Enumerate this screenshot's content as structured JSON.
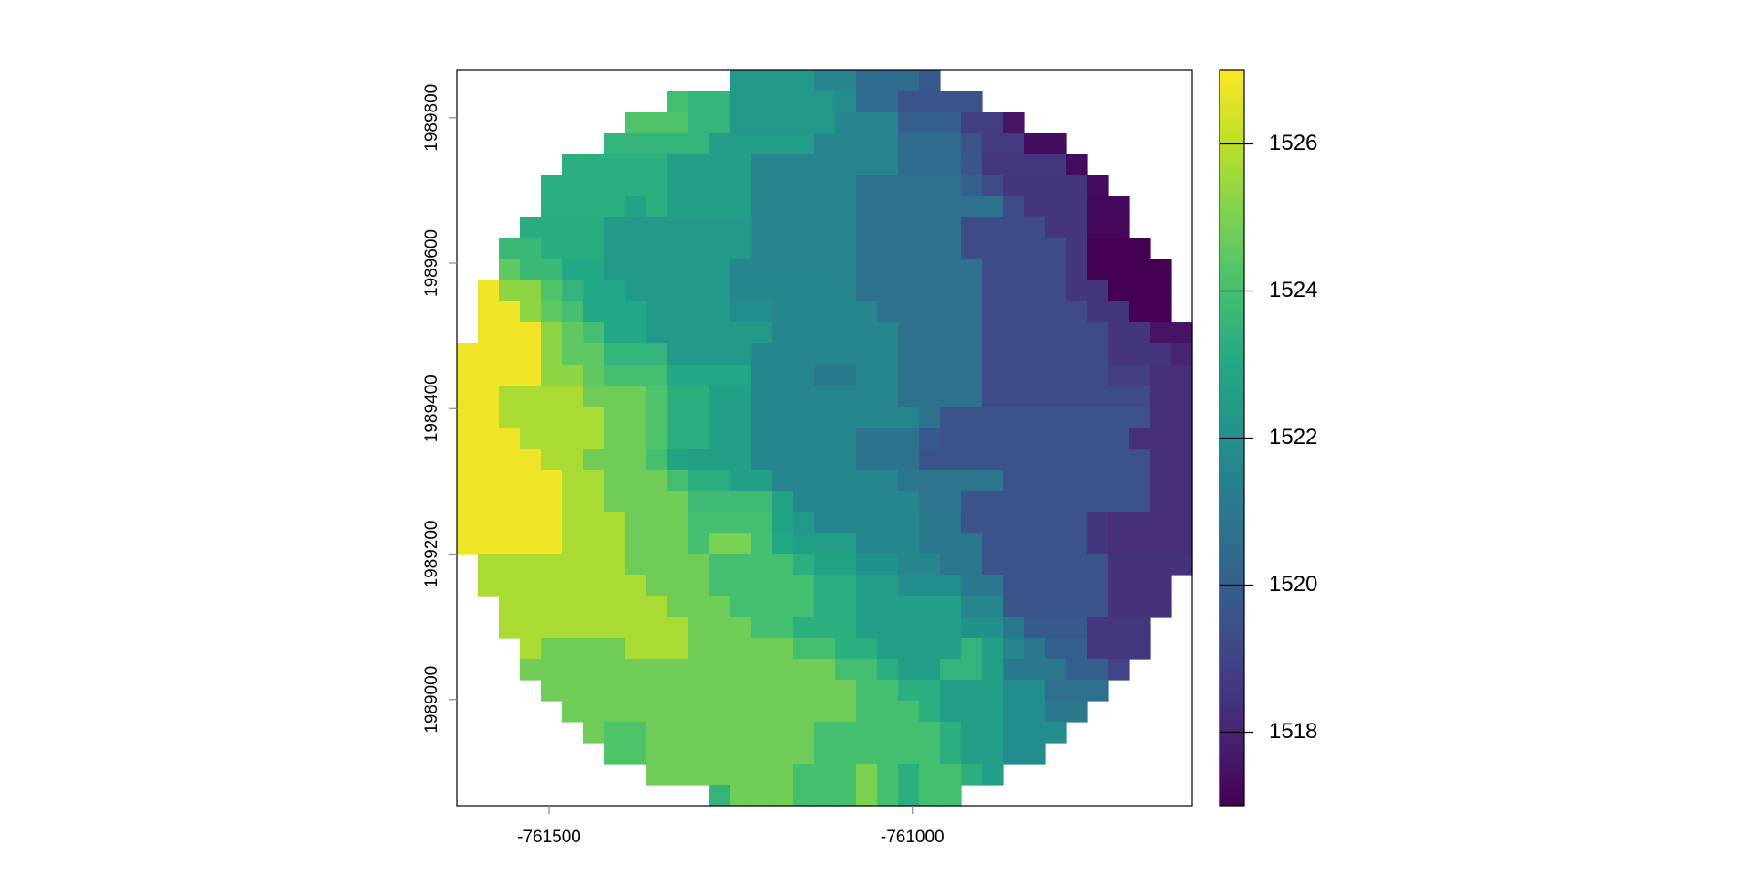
{
  "chart_data": {
    "type": "heatmap",
    "colormap": "viridis",
    "xlim": [
      -761627,
      -760615
    ],
    "ylim": [
      1988854,
      1989865
    ],
    "xticks": [
      -761500,
      -761000
    ],
    "yticks": [
      1989000,
      1989200,
      1989400,
      1989600,
      1989800
    ],
    "zlim": [
      1517,
      1527
    ],
    "zticks": [
      1518,
      1520,
      1522,
      1524,
      1526
    ],
    "z": [
      [
        null,
        null,
        null,
        null,
        null,
        null,
        null,
        null,
        null,
        null,
        null,
        null,
        null,
        1522.3,
        1522.3,
        1522.3,
        1522.3,
        1521.5,
        1521.5,
        1520.5,
        1520.5,
        1520.5,
        1519.8,
        null,
        null,
        null,
        null,
        null,
        null,
        null,
        null,
        null,
        null,
        null,
        null
      ],
      [
        null,
        null,
        null,
        null,
        null,
        null,
        null,
        null,
        null,
        null,
        1524,
        1523.5,
        1523.5,
        1522.3,
        1522.3,
        1522.3,
        1522.3,
        1522.3,
        1521.8,
        1520.5,
        1520.5,
        1519.5,
        1519.5,
        1519.5,
        1519.5,
        null,
        null,
        null,
        null,
        null,
        null,
        null,
        null,
        null,
        null
      ],
      [
        null,
        null,
        null,
        null,
        null,
        null,
        null,
        null,
        1524.2,
        1524.2,
        1524.2,
        1523.5,
        1523.5,
        1522.3,
        1522.3,
        1522.3,
        1522.3,
        1522.3,
        1521.5,
        1521.5,
        1521.5,
        1520,
        1520,
        1520,
        1518.8,
        1518.8,
        1517.5,
        null,
        null,
        null,
        null,
        null,
        null,
        null,
        null
      ],
      [
        null,
        null,
        null,
        null,
        null,
        null,
        null,
        1523.5,
        1523.5,
        1523.5,
        1523.5,
        1523.5,
        1522.5,
        1522.5,
        1522.5,
        1522.5,
        1522.5,
        1521.5,
        1521.5,
        1521.5,
        1521.5,
        1520.5,
        1520.5,
        1520.5,
        1519.5,
        1518.7,
        1518.7,
        1517.3,
        1517.3,
        null,
        null,
        null,
        null,
        null,
        null
      ],
      [
        null,
        null,
        null,
        null,
        null,
        1523.3,
        1523.3,
        1523.3,
        1523.3,
        1523.3,
        1522.6,
        1522.6,
        1522.6,
        1522.6,
        1521.5,
        1521.5,
        1521.5,
        1521.5,
        1521.5,
        1521.5,
        1521.5,
        1520.5,
        1520.5,
        1520.5,
        1519.7,
        1518.6,
        1518.6,
        1518.6,
        1518.6,
        1517.3,
        null,
        null,
        null,
        null,
        null
      ],
      [
        null,
        null,
        null,
        null,
        1523.3,
        1523.3,
        1523.3,
        1523.3,
        1523.3,
        1523.3,
        1522.6,
        1522.6,
        1522.6,
        1522.6,
        1521.5,
        1521.5,
        1521.5,
        1521.5,
        1521.5,
        1520.7,
        1520.7,
        1520.7,
        1520.7,
        1520.7,
        1520,
        1519.3,
        1518.5,
        1518.5,
        1518.5,
        1518.5,
        1517.3,
        null,
        null,
        null,
        null
      ],
      [
        null,
        null,
        null,
        null,
        1523.3,
        1523.3,
        1523.3,
        1523.3,
        1522.8,
        1523.3,
        1522.6,
        1522.6,
        1522.6,
        1522.6,
        1521.5,
        1521.5,
        1521.5,
        1521.5,
        1521.5,
        1520.7,
        1520.7,
        1520.7,
        1520.7,
        1520.7,
        1520.7,
        1520.7,
        1519.3,
        1518.5,
        1518.5,
        1518.5,
        1517.2,
        1517.2,
        null,
        null,
        null
      ],
      [
        null,
        null,
        null,
        1523.2,
        1523.2,
        1523.2,
        1523.2,
        1522.4,
        1522.4,
        1522.4,
        1522.4,
        1522.4,
        1522.4,
        1522.4,
        1521.5,
        1521.5,
        1521.5,
        1521.5,
        1521.5,
        1520.7,
        1520.7,
        1520.7,
        1520.7,
        1520.7,
        1519.3,
        1519.3,
        1519.3,
        1519.3,
        1518.5,
        1518.5,
        1517.2,
        1517.2,
        null,
        null,
        null
      ],
      [
        null,
        null,
        1523.7,
        1523.7,
        1523.2,
        1523.2,
        1523.2,
        1522.4,
        1522.4,
        1522.4,
        1522.4,
        1522.4,
        1522.4,
        1522.4,
        1521.5,
        1521.5,
        1521.5,
        1521.5,
        1521.5,
        1520.7,
        1520.7,
        1520.7,
        1520.7,
        1520.7,
        1519.3,
        1519.3,
        1519.3,
        1519.3,
        1519.3,
        1518.5,
        1517,
        1517,
        1517,
        null,
        null
      ],
      [
        null,
        null,
        1524.5,
        1523.7,
        1523.7,
        1523,
        1523,
        1522.4,
        1522.4,
        1522.4,
        1522.4,
        1522.4,
        1522.4,
        1521.6,
        1521.6,
        1521.6,
        1521.6,
        1521.6,
        1521.6,
        1520.7,
        1520.7,
        1520.7,
        1520.7,
        1520.7,
        1520.7,
        1519.3,
        1519.3,
        1519.3,
        1519.3,
        1518.5,
        1517,
        1517,
        1517,
        1517,
        null
      ],
      [
        null,
        1526.8,
        1525.3,
        1525.3,
        1524.2,
        1523.5,
        1523,
        1523,
        1522.4,
        1522.4,
        1522.4,
        1522.4,
        1522.4,
        1521.6,
        1521.6,
        1521.6,
        1521.6,
        1521.6,
        1521.6,
        1520.7,
        1520.7,
        1520.7,
        1520.7,
        1520.7,
        1520.7,
        1519.3,
        1519.3,
        1519.3,
        1519.3,
        1518.5,
        1518.5,
        1517,
        1517,
        1517,
        null
      ],
      [
        null,
        1526.8,
        1526.8,
        1525.3,
        1524.5,
        1524,
        1523,
        1523,
        1523,
        1522.4,
        1522.4,
        1522.4,
        1522.4,
        1521.8,
        1521.8,
        1521.6,
        1521.6,
        1521.6,
        1521.6,
        1521.6,
        1520.7,
        1520.7,
        1520.7,
        1520.7,
        1520.7,
        1519.3,
        1519.3,
        1519.3,
        1519.3,
        1519.3,
        1518.5,
        1518.5,
        1517,
        1517,
        null
      ],
      [
        null,
        1526.8,
        1526.8,
        1526.8,
        1525.3,
        1524.5,
        1524,
        1523,
        1523,
        1522.4,
        1522.4,
        1522.4,
        1522.4,
        1522.4,
        1522.4,
        1521.6,
        1521.6,
        1521.6,
        1521.6,
        1521.6,
        1521.6,
        1520.7,
        1520.7,
        1520.7,
        1520.7,
        1519.3,
        1519.3,
        1519.3,
        1519.3,
        1519.3,
        1519.3,
        1518.5,
        1518.5,
        1517.5,
        1517.5
      ],
      [
        1526.8,
        1526.8,
        1526.8,
        1526.8,
        1525.3,
        1524.5,
        1524.5,
        1523.5,
        1523.5,
        1523.5,
        1522.4,
        1522.4,
        1522.4,
        1522.4,
        1521.6,
        1521.6,
        1521.6,
        1521.6,
        1521.6,
        1521.6,
        1521.6,
        1520.7,
        1520.7,
        1520.7,
        1520.7,
        1519.3,
        1519.3,
        1519.3,
        1519.3,
        1519.3,
        1519.3,
        1518.5,
        1518.5,
        1518.5,
        1518
      ],
      [
        1526.8,
        1526.8,
        1526.8,
        1526.8,
        1525.3,
        1525.3,
        1524.5,
        1524,
        1524,
        1524,
        1523,
        1523,
        1523,
        1523,
        1521.6,
        1521.6,
        1521.6,
        1521,
        1521,
        1521.6,
        1521.6,
        1520.7,
        1520.7,
        1520.7,
        1520.7,
        1519.3,
        1519.3,
        1519.3,
        1519.3,
        1519.3,
        1519.3,
        1518.8,
        1518.8,
        1518.3,
        1518.3
      ],
      [
        1526.8,
        1526.8,
        1525.7,
        1525.7,
        1525.7,
        1525.7,
        1524.8,
        1524.8,
        1524.8,
        1524.2,
        1523.3,
        1523.3,
        1522.6,
        1522.6,
        1521.6,
        1521.6,
        1521.6,
        1521.6,
        1521.6,
        1521.6,
        1521.6,
        1520.7,
        1520.7,
        1520.7,
        1520.7,
        1519.3,
        1519.3,
        1519.3,
        1519.3,
        1519.3,
        1519.3,
        1519.3,
        1519.3,
        1518.3,
        1518.3
      ],
      [
        1526.8,
        1526.8,
        1525.7,
        1525.7,
        1525.7,
        1525.7,
        1525.7,
        1524.8,
        1524.8,
        1524.2,
        1523.3,
        1523.3,
        1522.6,
        1522.6,
        1521.6,
        1521.6,
        1521.6,
        1521.6,
        1521.6,
        1521.6,
        1521.6,
        1521.6,
        1520.7,
        1519.5,
        1519.5,
        1519.5,
        1519.5,
        1519.5,
        1519.5,
        1519.5,
        1519.5,
        1519.5,
        1519.5,
        1518.3,
        1518.3
      ],
      [
        1526.8,
        1526.8,
        1526.8,
        1525.7,
        1525.7,
        1525.7,
        1525.7,
        1524.8,
        1524.8,
        1524.2,
        1523.3,
        1523.3,
        1522.6,
        1522.6,
        1521.6,
        1521.6,
        1521.6,
        1521.6,
        1521.6,
        1520.8,
        1520.8,
        1520.8,
        1519.8,
        1519.5,
        1519.5,
        1519.5,
        1519.5,
        1519.5,
        1519.5,
        1519.5,
        1519.5,
        1519.5,
        1518.3,
        1518.3,
        1518.3
      ],
      [
        1526.8,
        1526.8,
        1526.8,
        1526.8,
        1525.7,
        1525.7,
        1524.8,
        1524.8,
        1524.8,
        1524,
        1522.8,
        1522.6,
        1522.6,
        1522.6,
        1521.6,
        1521.6,
        1521.6,
        1521.6,
        1521.6,
        1520.8,
        1520.8,
        1520.8,
        1519.5,
        1519.5,
        1519.5,
        1519.5,
        1519.5,
        1519.5,
        1519.5,
        1519.5,
        1519.5,
        1519.5,
        1519.5,
        1518.3,
        1518.3
      ],
      [
        1526.8,
        1526.8,
        1526.8,
        1526.8,
        1526.8,
        1525.7,
        1525.7,
        1524.8,
        1524.8,
        1524.8,
        1524,
        1523.3,
        1523.3,
        1522.6,
        1522.6,
        1521.6,
        1521.6,
        1521.6,
        1521.6,
        1521.6,
        1521.6,
        1520.9,
        1520.9,
        1520.9,
        1520.9,
        1520.9,
        1519.5,
        1519.5,
        1519.5,
        1519.5,
        1519.5,
        1519.5,
        1519.5,
        1518.3,
        1518.3
      ],
      [
        1526.8,
        1526.8,
        1526.8,
        1526.8,
        1526.8,
        1525.7,
        1525.7,
        1524.8,
        1524.8,
        1524.8,
        1524.8,
        1523.8,
        1523.8,
        1523.8,
        1523.8,
        1522.8,
        1521.6,
        1521.6,
        1521.6,
        1521.6,
        1521.6,
        1521.6,
        1520.9,
        1520.9,
        1519.5,
        1519.5,
        1519.5,
        1519.5,
        1519.5,
        1519.5,
        1519.5,
        1519.5,
        1519.5,
        1518.3,
        1518.3
      ],
      [
        1526.8,
        1526.8,
        1526.8,
        1526.8,
        1526.8,
        1525.7,
        1525.7,
        1525.7,
        1524.8,
        1524.8,
        1524.8,
        1524,
        1524,
        1524,
        1524,
        1522.8,
        1522.3,
        1521.6,
        1521.6,
        1521.6,
        1521.6,
        1521.6,
        1521,
        1521,
        1519.5,
        1519.5,
        1519.5,
        1519.5,
        1519.5,
        1519.5,
        1518.5,
        1518.3,
        1518.3,
        1518.3,
        1518.3
      ],
      [
        1526.8,
        1526.8,
        1526.8,
        1526.8,
        1526.8,
        1525.7,
        1525.7,
        1525.7,
        1524.8,
        1524.8,
        1524.8,
        1524,
        1525,
        1525,
        1524,
        1523,
        1522.5,
        1522.5,
        1522.5,
        1521.6,
        1521.6,
        1521.6,
        1521,
        1521,
        1521,
        1519.5,
        1519.5,
        1519.5,
        1519.5,
        1519.5,
        1518.5,
        1518.3,
        1518.3,
        1518.3,
        1518.3
      ],
      [
        null,
        1525.7,
        1525.7,
        1525.7,
        1525.7,
        1525.7,
        1525.7,
        1525.7,
        1524.8,
        1524.8,
        1524.8,
        1524.8,
        1524,
        1524,
        1524,
        1524,
        1523.3,
        1522.8,
        1522.8,
        1522,
        1522,
        1521.5,
        1521.5,
        1521,
        1521,
        1519.6,
        1519.6,
        1519.6,
        1519.6,
        1519.6,
        1519.6,
        1518.4,
        1518.4,
        1518.4,
        1518.4
      ],
      [
        null,
        1525.7,
        1525.7,
        1525.7,
        1525.7,
        1525.7,
        1525.7,
        1525.7,
        1525.7,
        1524.8,
        1524.8,
        1524.8,
        1524,
        1524,
        1524,
        1524,
        1524,
        1523.3,
        1523.3,
        1522.6,
        1522.6,
        1521.8,
        1521.8,
        1521.8,
        1521,
        1521,
        1519.6,
        1519.6,
        1519.6,
        1519.6,
        1519.6,
        1518.4,
        1518.4,
        1518.4,
        null
      ],
      [
        null,
        null,
        1525.7,
        1525.7,
        1525.7,
        1525.7,
        1525.7,
        1525.7,
        1525.7,
        1525.7,
        1524.8,
        1524.8,
        1524.8,
        1524,
        1524,
        1524,
        1524,
        1523.3,
        1523.3,
        1522.6,
        1522.6,
        1522.6,
        1522.6,
        1522.6,
        1521.5,
        1521.5,
        1519.6,
        1519.6,
        1519.6,
        1519.6,
        1519.6,
        1518.4,
        1518.4,
        1518.4,
        null
      ],
      [
        null,
        null,
        1525.7,
        1525.7,
        1525.7,
        1525.7,
        1525.7,
        1525.7,
        1525.7,
        1525.7,
        1525.7,
        1524.8,
        1524.8,
        1524.8,
        1524,
        1524,
        1523.3,
        1523.3,
        1523.3,
        1522.6,
        1522.6,
        1522.6,
        1522.6,
        1522.6,
        1522,
        1522,
        1521,
        1519.8,
        1519.8,
        1519.8,
        1518.6,
        1518.6,
        1518.6,
        null,
        null
      ],
      [
        null,
        null,
        null,
        1525.7,
        1524.8,
        1524.8,
        1524.8,
        1524.8,
        1525.7,
        1525.7,
        1525.7,
        1524.8,
        1524.8,
        1524.8,
        1524.8,
        1524.8,
        1524,
        1524,
        1523.3,
        1523.3,
        1522.6,
        1522.6,
        1522.6,
        1522.6,
        1523.5,
        1522.6,
        1521.6,
        1521,
        1520,
        1520,
        1518.6,
        1518.6,
        1518.6,
        null,
        null
      ],
      [
        null,
        null,
        null,
        1524.8,
        1524.8,
        1524.8,
        1524.8,
        1524.8,
        1524.8,
        1524.8,
        1524.8,
        1524.8,
        1524.8,
        1524.8,
        1524.8,
        1524.8,
        1524.8,
        1524.8,
        1524,
        1524,
        1523.3,
        1522.6,
        1522.6,
        1523.5,
        1523.5,
        1522.6,
        1521,
        1521,
        1521,
        1520,
        1520,
        1519,
        null,
        null,
        null
      ],
      [
        null,
        null,
        null,
        null,
        1524.8,
        1524.8,
        1524.8,
        1524.8,
        1524.8,
        1524.8,
        1524.8,
        1524.8,
        1524.8,
        1524.8,
        1524.8,
        1524.8,
        1524.8,
        1524.8,
        1524.8,
        1524,
        1524,
        1523.3,
        1523.3,
        1522.6,
        1522.6,
        1522.6,
        1521.8,
        1521.8,
        1520.6,
        1520.6,
        1520.6,
        null,
        null,
        null,
        null
      ],
      [
        null,
        null,
        null,
        null,
        null,
        1524.8,
        1524.8,
        1524.8,
        1524.8,
        1524.8,
        1524.8,
        1524.8,
        1524.8,
        1524.8,
        1524.8,
        1524.8,
        1524.8,
        1524.8,
        1524.8,
        1524,
        1524,
        1524,
        1523.3,
        1522.6,
        1522.6,
        1522.6,
        1521.8,
        1521.8,
        1521,
        1521,
        null,
        null,
        null,
        null,
        null
      ],
      [
        null,
        null,
        null,
        null,
        null,
        null,
        1524.8,
        1524.2,
        1524.2,
        1524.8,
        1524.8,
        1524.8,
        1524.8,
        1524.8,
        1524.8,
        1524.8,
        1524.8,
        1524,
        1524,
        1524,
        1524,
        1524,
        1524,
        1523.3,
        1522.6,
        1522.6,
        1521.8,
        1521.8,
        1521.8,
        null,
        null,
        null,
        null,
        null,
        null
      ],
      [
        null,
        null,
        null,
        null,
        null,
        null,
        null,
        1524.2,
        1524.2,
        1524.8,
        1524.8,
        1524.8,
        1524.8,
        1524.8,
        1524.8,
        1524.8,
        1524.8,
        1524,
        1524,
        1524,
        1524,
        1524,
        1524,
        1523.3,
        1522.6,
        1522.6,
        1521.8,
        1521.8,
        null,
        null,
        null,
        null,
        null,
        null,
        null
      ],
      [
        null,
        null,
        null,
        null,
        null,
        null,
        null,
        null,
        null,
        1524.8,
        1524.8,
        1524.8,
        1524.8,
        1524.8,
        1524.8,
        1524.8,
        1524,
        1524,
        1524,
        1525,
        1524,
        1523.3,
        1524,
        1524,
        1523.3,
        1522.6,
        null,
        null,
        null,
        null,
        null,
        null,
        null,
        null,
        null
      ],
      [
        null,
        null,
        null,
        null,
        null,
        null,
        null,
        null,
        null,
        null,
        null,
        null,
        1523.5,
        1524.8,
        1524.8,
        1524.8,
        1524,
        1524,
        1524,
        1525,
        1524,
        1523.3,
        1524,
        1524,
        null,
        null,
        null,
        null,
        null,
        null,
        null,
        null,
        null,
        null,
        null
      ]
    ]
  }
}
